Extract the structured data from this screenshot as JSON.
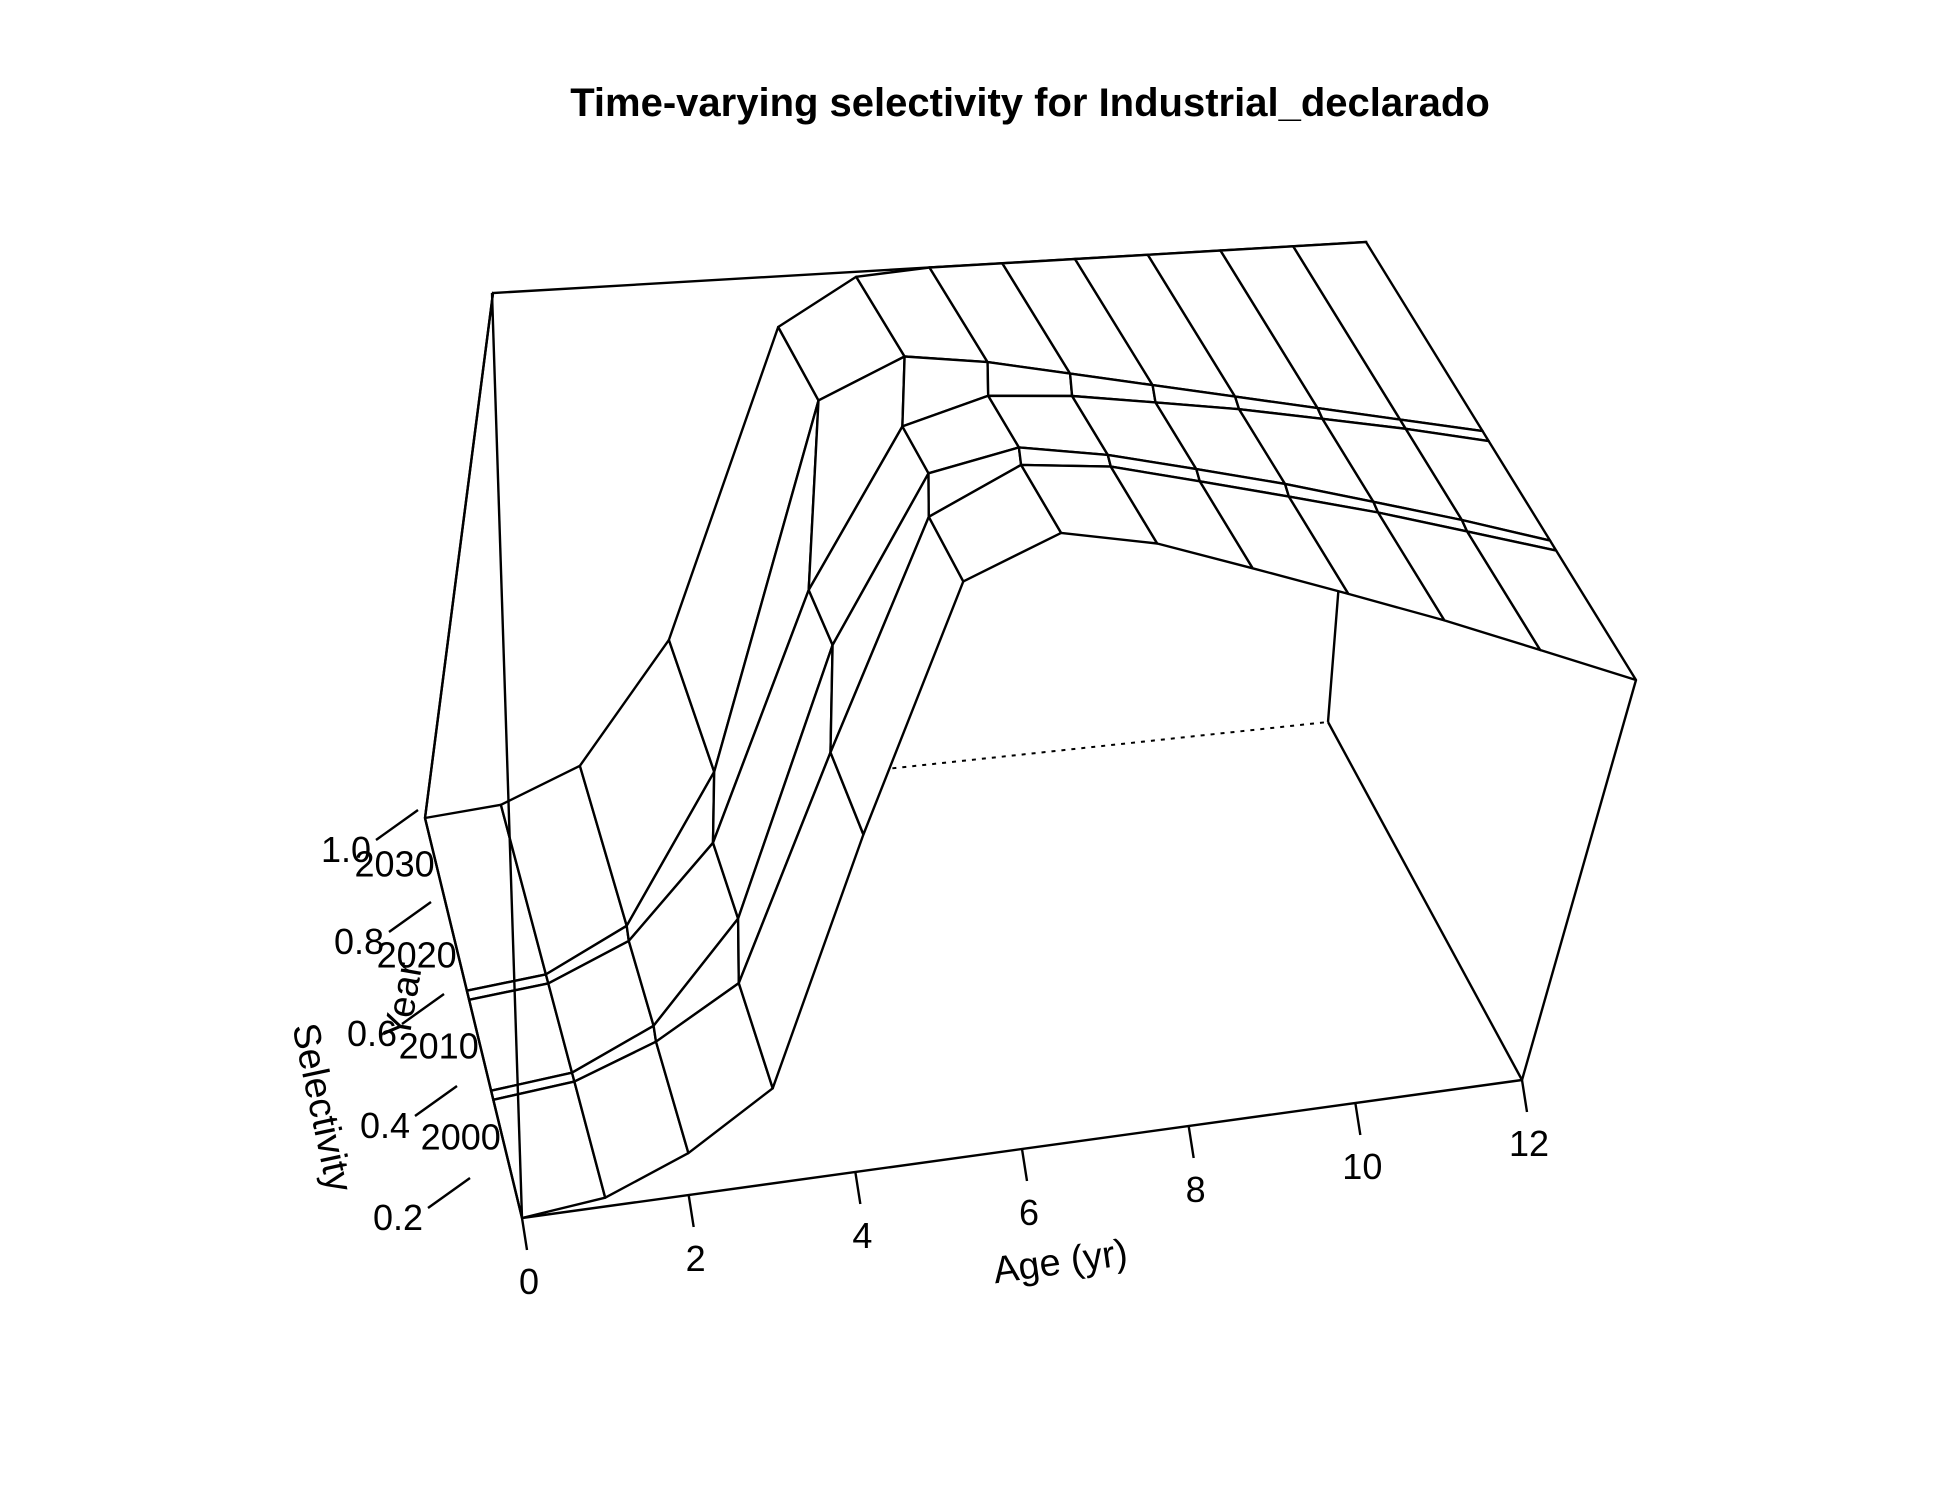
{
  "chart_data": {
    "type": "surface",
    "title": "Time-varying selectivity for Industrial_declarado",
    "xlabel": "Age (yr)",
    "ylabel": "Year",
    "zlabel": "Selectivity",
    "x_ticks": [
      0,
      2,
      4,
      6,
      8,
      10,
      12
    ],
    "y_ticks": [
      2000,
      2010,
      2020,
      2030
    ],
    "z_ticks": [
      "0.2",
      "0.4",
      "0.6",
      "0.8",
      "1.0"
    ],
    "xlim": [
      0,
      12
    ],
    "ylim": [
      1994,
      2038
    ],
    "zlim": [
      0.0,
      1.0
    ],
    "ages": [
      0,
      1,
      2,
      3,
      4,
      5,
      6,
      7,
      8,
      9,
      10,
      11,
      12
    ],
    "year_breaks": [
      2007,
      2008,
      2018,
      2019
    ],
    "series": [
      {
        "years": "1994-2007",
        "values": [
          0.0,
          0.01,
          0.05,
          0.12,
          0.45,
          0.82,
          0.93,
          0.96,
          0.97,
          0.98,
          0.99,
          0.995,
          1.0
        ]
      },
      {
        "years": "2008-2018",
        "values": [
          0.0,
          0.01,
          0.06,
          0.2,
          0.6,
          0.88,
          0.95,
          0.97,
          0.98,
          0.99,
          0.995,
          1.0,
          1.0
        ]
      },
      {
        "years": "2019-2038",
        "values": [
          0.0,
          0.01,
          0.07,
          0.3,
          0.9,
          0.99,
          1.0,
          1.0,
          1.0,
          1.0,
          1.0,
          1.0,
          1.0
        ]
      }
    ]
  }
}
